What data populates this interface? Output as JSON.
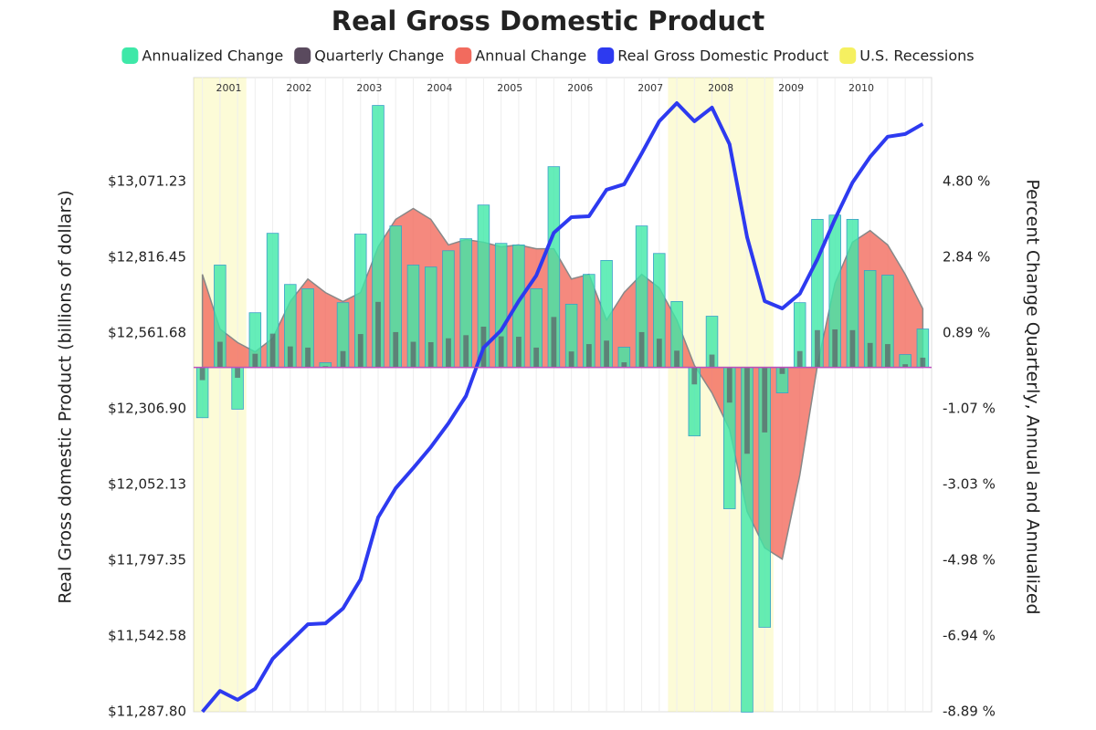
{
  "chart_data": {
    "type": "combo",
    "title": "Real Gross Domestic Product",
    "y_label": "Real Gross domestic Product (billions of dollars)",
    "y2_label": "Percent Change Quarterly, Annual and Annualized",
    "x": [
      2001,
      2001.25,
      2001.5,
      2001.75,
      2002,
      2002.25,
      2002.5,
      2002.75,
      2003,
      2003.25,
      2003.5,
      2003.75,
      2004,
      2004.25,
      2004.5,
      2004.75,
      2005,
      2005.25,
      2005.5,
      2005.75,
      2006,
      2006.25,
      2006.5,
      2006.75,
      2007,
      2007.25,
      2007.5,
      2007.75,
      2008,
      2008.25,
      2008.5,
      2008.75,
      2009,
      2009.25,
      2009.5,
      2009.75,
      2010,
      2010.25,
      2010.5,
      2010.75,
      2011,
      2011.25
    ],
    "xlim": [
      2000.875,
      2011.375
    ],
    "xticks": [
      {
        "value": 2001.375,
        "label": "2001"
      },
      {
        "value": 2002.375,
        "label": "2002"
      },
      {
        "value": 2003.375,
        "label": "2003"
      },
      {
        "value": 2004.375,
        "label": "2004"
      },
      {
        "value": 2005.375,
        "label": "2005"
      },
      {
        "value": 2006.375,
        "label": "2006"
      },
      {
        "value": 2007.375,
        "label": "2007"
      },
      {
        "value": 2008.375,
        "label": "2008"
      },
      {
        "value": 2009.375,
        "label": "2009"
      },
      {
        "value": 2010.375,
        "label": "2010"
      }
    ],
    "ylim": [
      11287.8,
      13421
    ],
    "yticks": [
      {
        "value": 11287.8,
        "label": "$11,287.80"
      },
      {
        "value": 11542.58,
        "label": "$11,542.58"
      },
      {
        "value": 11797.35,
        "label": "$11,797.35"
      },
      {
        "value": 12052.13,
        "label": "$12,052.13"
      },
      {
        "value": 12306.9,
        "label": "$12,306.90"
      },
      {
        "value": 12561.68,
        "label": "$12,561.68"
      },
      {
        "value": 12816.45,
        "label": "$12,816.45"
      },
      {
        "value": 13071.23,
        "label": "$13,071.23"
      }
    ],
    "y2lim": [
      -8.89,
      7.48
    ],
    "y2ticks": [
      {
        "value": -8.89,
        "label": "-8.89 %"
      },
      {
        "value": -6.94,
        "label": "-6.94 %"
      },
      {
        "value": -4.98,
        "label": "-4.98 %"
      },
      {
        "value": -3.03,
        "label": "-3.03 %"
      },
      {
        "value": -1.07,
        "label": "-1.07 %"
      },
      {
        "value": 0.89,
        "label": "0.89 %"
      },
      {
        "value": 2.84,
        "label": "2.84 %"
      },
      {
        "value": 4.8,
        "label": "4.80 %"
      }
    ],
    "series": [
      {
        "name": "Annualized Change",
        "color": "#3ee8a8",
        "kind": "bar",
        "axis": "y2",
        "values": [
          -1.3,
          2.64,
          -1.08,
          1.41,
          3.46,
          2.14,
          2.03,
          0.12,
          1.67,
          3.44,
          6.76,
          3.65,
          2.64,
          2.59,
          3.01,
          3.32,
          4.19,
          3.2,
          3.16,
          2.03,
          5.18,
          1.63,
          2.4,
          2.76,
          0.52,
          3.65,
          2.94,
          1.7,
          -1.77,
          1.32,
          -3.65,
          -8.9,
          -6.71,
          -0.66,
          1.67,
          3.82,
          3.93,
          3.82,
          2.5,
          2.38,
          0.33,
          0.99
        ]
      },
      {
        "name": "Quarterly Change",
        "color": "#5a4a5e",
        "kind": "bar",
        "axis": "y2",
        "values": [
          -0.33,
          0.66,
          -0.27,
          0.35,
          0.87,
          0.54,
          0.51,
          0.03,
          0.42,
          0.86,
          1.69,
          0.91,
          0.66,
          0.65,
          0.75,
          0.83,
          1.05,
          0.8,
          0.79,
          0.51,
          1.3,
          0.41,
          0.6,
          0.69,
          0.13,
          0.91,
          0.74,
          0.43,
          -0.44,
          0.33,
          -0.91,
          -2.23,
          -1.68,
          -0.17,
          0.42,
          0.96,
          0.98,
          0.96,
          0.63,
          0.6,
          0.08,
          0.25
        ]
      },
      {
        "name": "Annual Change",
        "color": "#f26b5e",
        "kind": "area",
        "axis": "y2",
        "values": [
          2.4,
          0.99,
          0.64,
          0.4,
          0.75,
          1.7,
          2.28,
          1.93,
          1.7,
          1.93,
          3.11,
          3.82,
          4.1,
          3.82,
          3.16,
          3.3,
          3.23,
          3.11,
          3.16,
          3.06,
          3.06,
          2.28,
          2.4,
          1.22,
          1.93,
          2.4,
          2.05,
          1.22,
          0.05,
          -0.66,
          -1.6,
          -3.72,
          -4.66,
          -4.95,
          -2.78,
          0.05,
          2.17,
          3.23,
          3.53,
          3.16,
          2.4,
          1.51
        ]
      },
      {
        "name": "Real Gross Domestic Product",
        "color": "#2d3af0",
        "kind": "line",
        "values": [
          11287.8,
          11358,
          11328,
          11365,
          11466,
          11524,
          11582,
          11585,
          11635,
          11733,
          11941.6,
          12039.8,
          12107.4,
          12178,
          12257.8,
          12349.8,
          12512.5,
          12570.8,
          12669,
          12755,
          12899,
          12951.5,
          12954.5,
          13043.6,
          13062,
          13166,
          13274,
          13335,
          13274,
          13320,
          13197,
          12884,
          12669,
          12644.5,
          12694,
          12810,
          12945,
          13068,
          13154,
          13222,
          13231,
          13265
        ]
      }
    ],
    "recession_label": "U.S. Recessions",
    "recession_color": "#f5f060",
    "recessions": [
      {
        "start": 2000.875,
        "end": 2001.625
      },
      {
        "start": 2007.625,
        "end": 2009.125
      }
    ]
  }
}
